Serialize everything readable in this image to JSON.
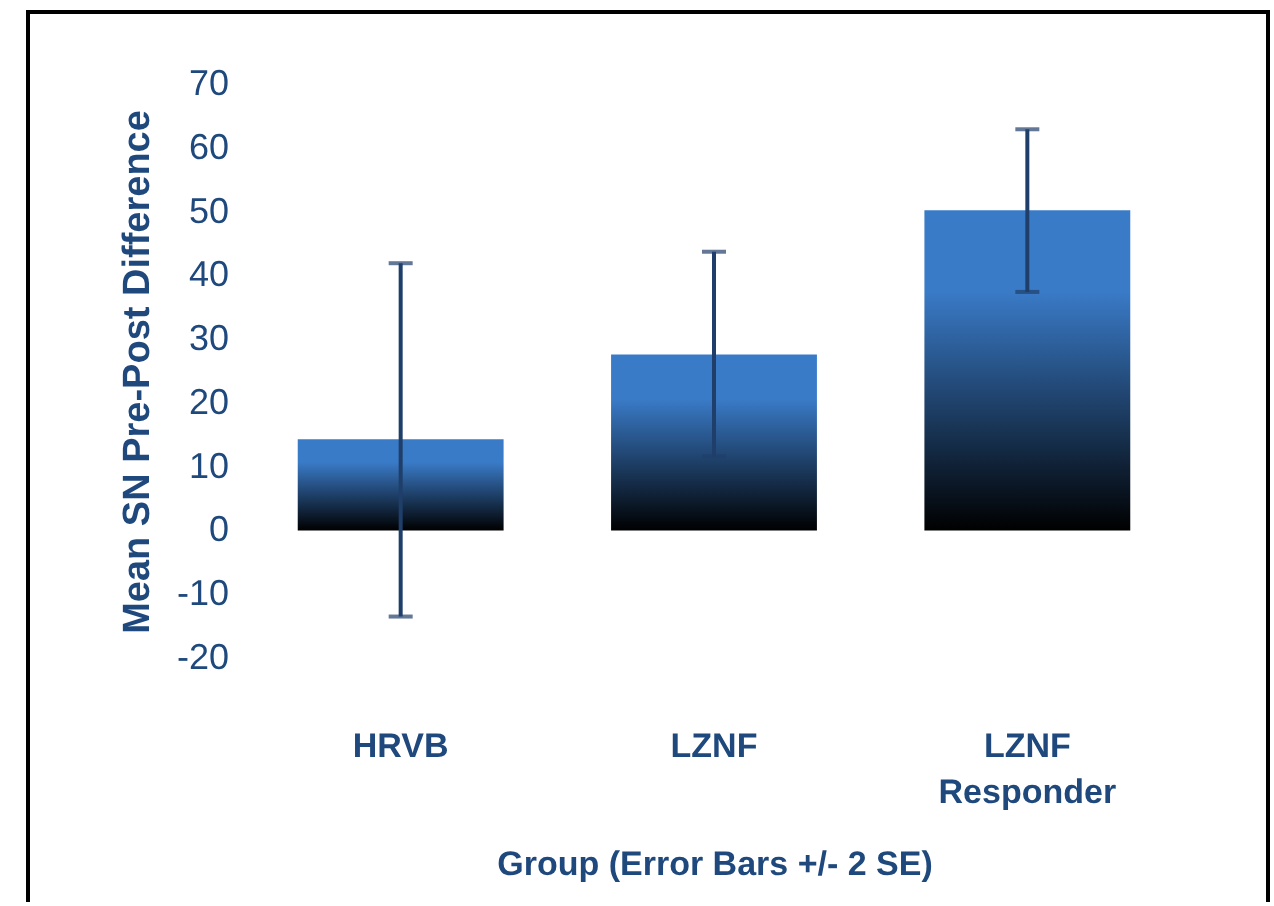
{
  "chart_data": {
    "type": "bar",
    "xlabel": "Group (Error Bars +/- 2 SE)",
    "ylabel": "Mean SN Pre-Post Difference",
    "categories": [
      "HRVB",
      "LZNF",
      "LZNF Responder"
    ],
    "values": [
      14.3,
      27.6,
      50.2
    ],
    "errors": [
      [
        -13.5,
        41.9
      ],
      [
        11.6,
        43.7
      ],
      [
        37.4,
        62.9
      ]
    ],
    "color": "#3a7bc8",
    "ylim": [
      -20,
      70
    ],
    "yticks": [
      -20,
      -10,
      0,
      10,
      20,
      30,
      40,
      50,
      60,
      70
    ],
    "grid": false
  }
}
